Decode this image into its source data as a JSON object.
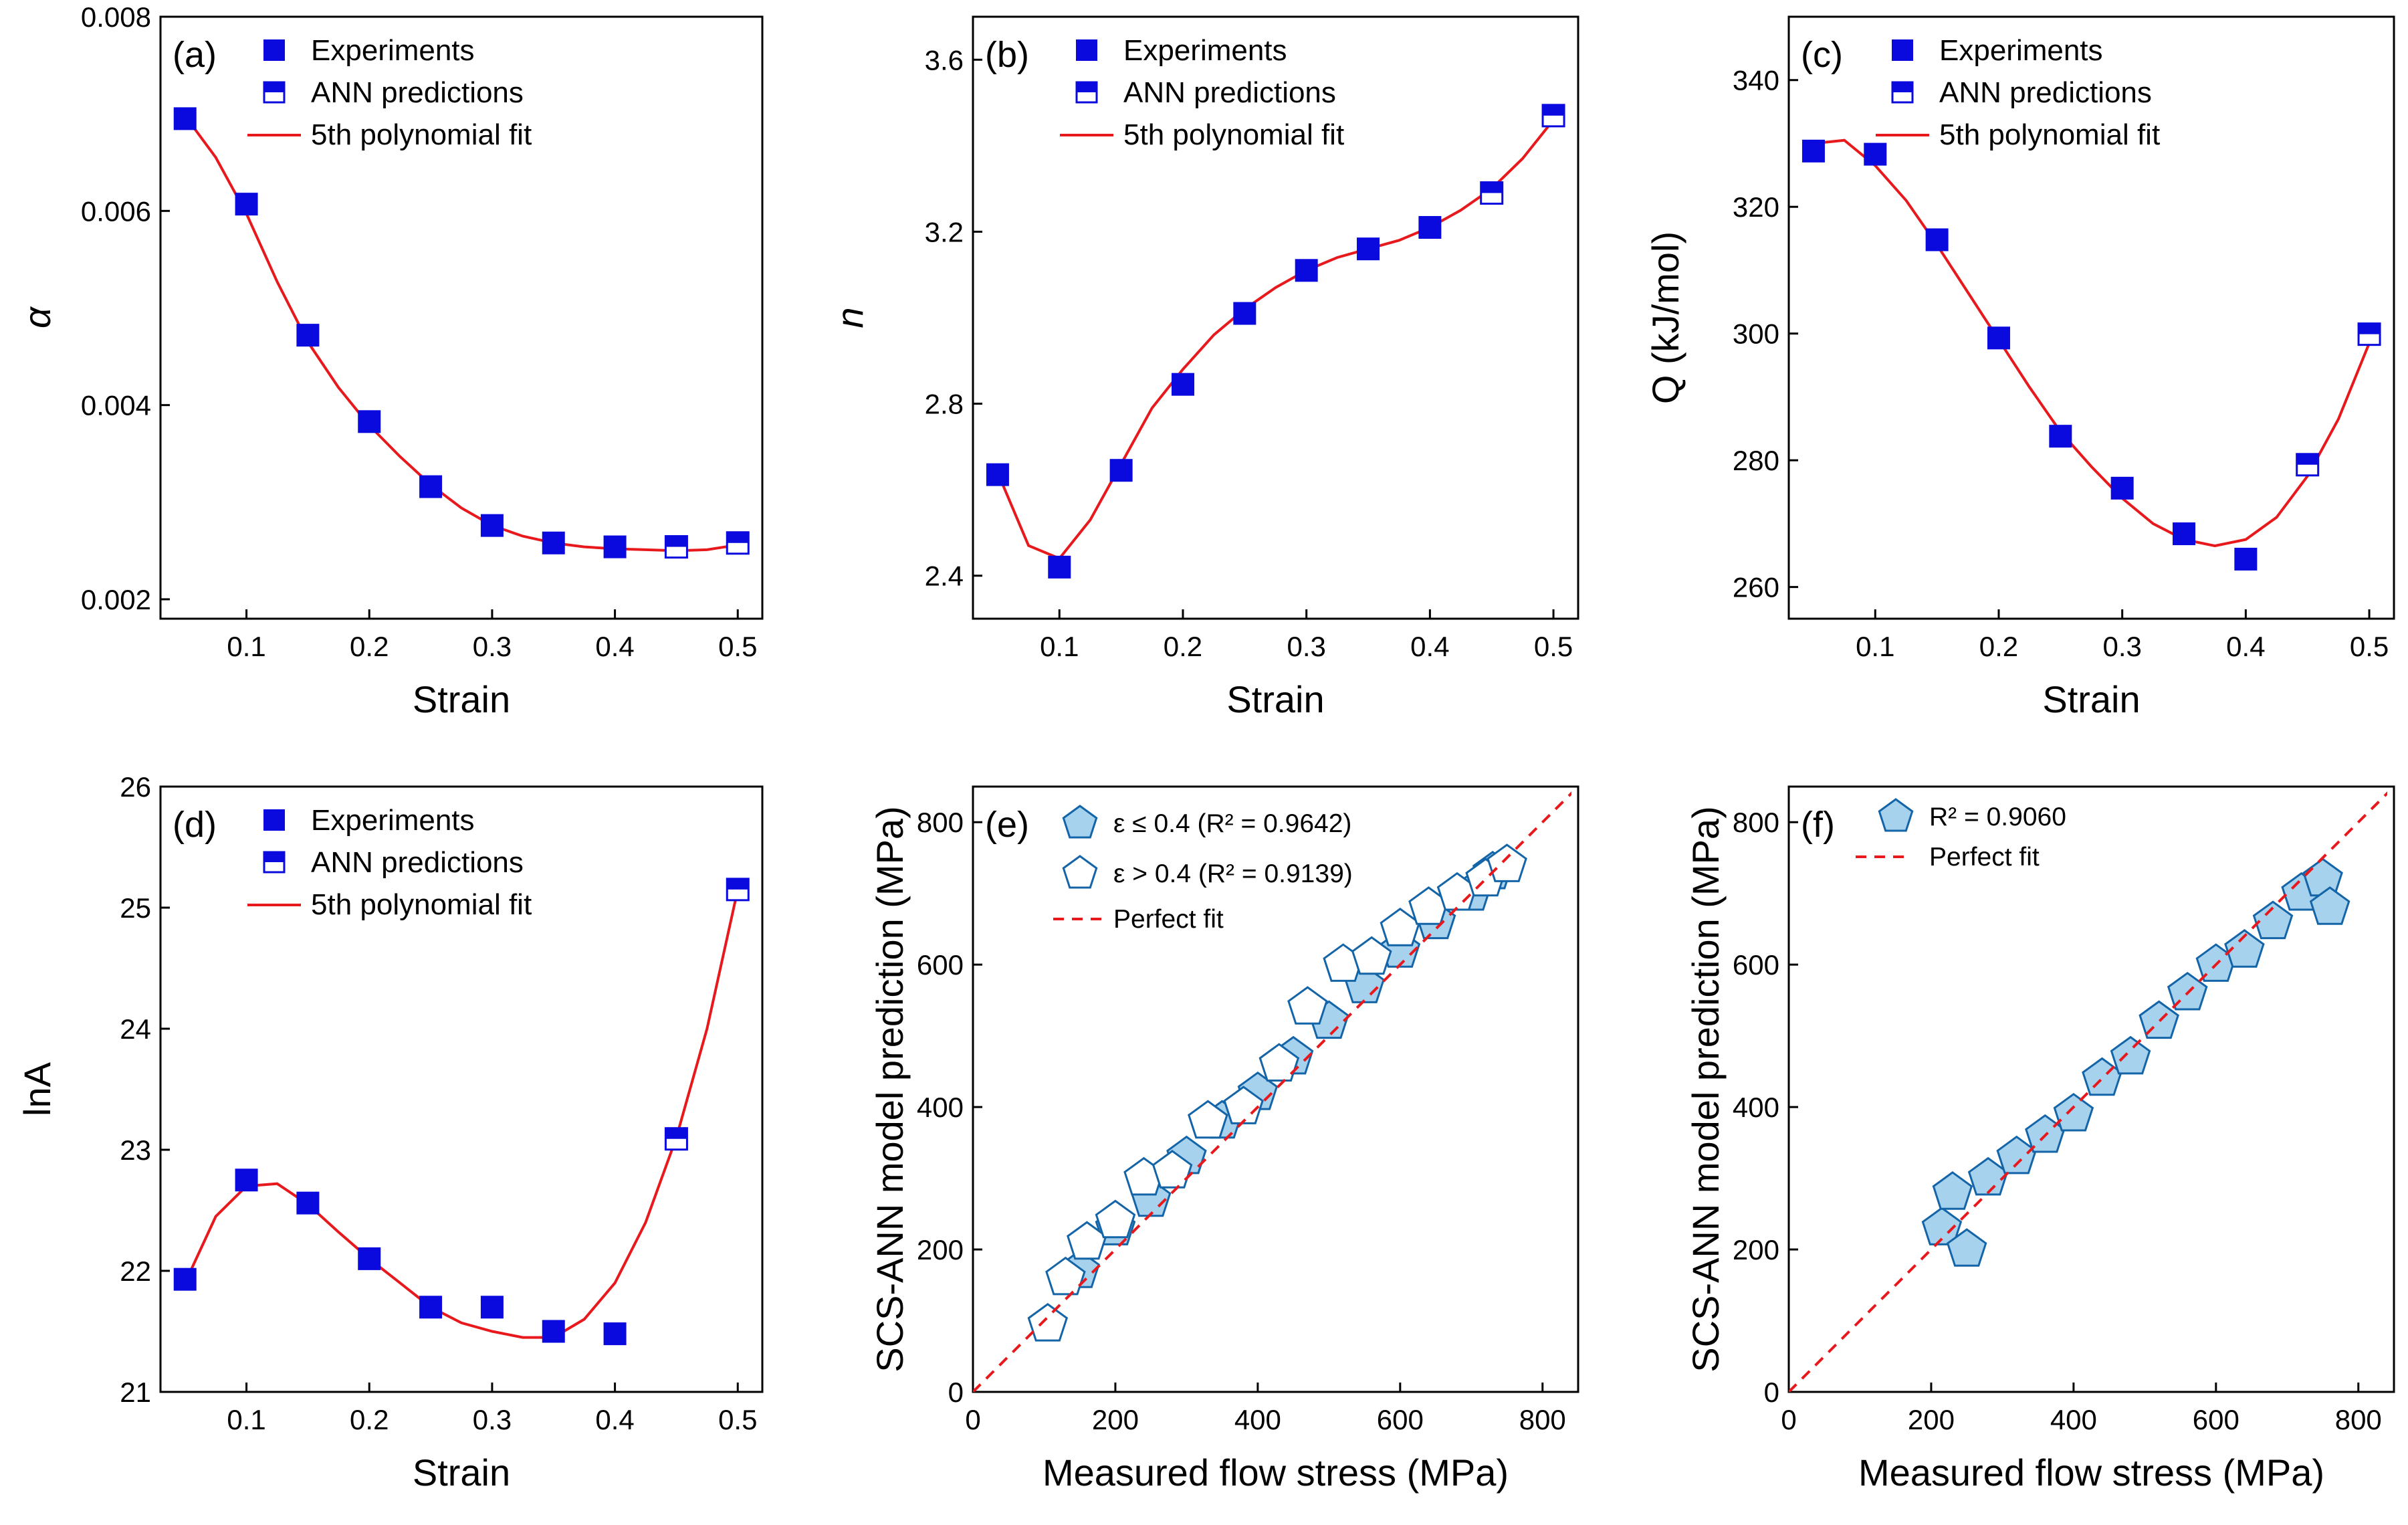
{
  "chart_data": [
    {
      "panel": "(a)",
      "type": "scatter",
      "xlabel": "Strain",
      "ylabel": "α",
      "xlim": [
        0.03,
        0.52
      ],
      "ylim": [
        0.0018,
        0.008
      ],
      "xticks": [
        0.1,
        0.2,
        0.3,
        0.4,
        0.5
      ],
      "xtick_labels": [
        "0.1",
        "0.2",
        "0.3",
        "0.4",
        "0.5"
      ],
      "yticks": [
        0.002,
        0.004,
        0.006,
        0.008
      ],
      "ytick_labels": [
        "0.002",
        "0.004",
        "0.006",
        "0.008"
      ],
      "legend": [
        "Experiments",
        "ANN predictions",
        "5th polynomial fit"
      ],
      "x": [
        0.05,
        0.1,
        0.15,
        0.2,
        0.25,
        0.3,
        0.35,
        0.4,
        0.45,
        0.5
      ],
      "series": [
        {
          "name": "Experiments",
          "x": [
            0.05,
            0.1,
            0.15,
            0.2,
            0.25,
            0.3,
            0.35,
            0.4
          ],
          "values": [
            0.00695,
            0.00607,
            0.00472,
            0.00383,
            0.00316,
            0.00276,
            0.00258,
            0.00254
          ]
        },
        {
          "name": "ANN predictions",
          "x": [
            0.45,
            0.5
          ],
          "values": [
            0.00254,
            0.00258
          ]
        },
        {
          "name": "5th polynomial fit",
          "x": [
            0.05,
            0.075,
            0.1,
            0.125,
            0.15,
            0.175,
            0.2,
            0.225,
            0.25,
            0.275,
            0.3,
            0.325,
            0.35,
            0.375,
            0.4,
            0.425,
            0.45,
            0.475,
            0.5
          ],
          "values": [
            0.00698,
            0.00655,
            0.00597,
            0.00527,
            0.00465,
            0.00418,
            0.00379,
            0.00347,
            0.00318,
            0.00294,
            0.00276,
            0.00265,
            0.00258,
            0.00254,
            0.00252,
            0.00251,
            0.0025,
            0.00251,
            0.00256
          ]
        }
      ]
    },
    {
      "panel": "(b)",
      "type": "scatter",
      "xlabel": "Strain",
      "ylabel": "n",
      "xlim": [
        0.03,
        0.52
      ],
      "ylim": [
        2.3,
        3.7
      ],
      "xticks": [
        0.1,
        0.2,
        0.3,
        0.4,
        0.5
      ],
      "xtick_labels": [
        "0.1",
        "0.2",
        "0.3",
        "0.4",
        "0.5"
      ],
      "yticks": [
        2.4,
        2.8,
        3.2,
        3.6
      ],
      "ytick_labels": [
        "2.4",
        "2.8",
        "3.2",
        "3.6"
      ],
      "legend": [
        "Experiments",
        "ANN predictions",
        "5th polynomial fit"
      ],
      "series": [
        {
          "name": "Experiments",
          "x": [
            0.05,
            0.1,
            0.15,
            0.2,
            0.25,
            0.3,
            0.35,
            0.4
          ],
          "values": [
            2.635,
            2.42,
            2.645,
            2.845,
            3.01,
            3.11,
            3.16,
            3.21
          ]
        },
        {
          "name": "ANN predictions",
          "x": [
            0.45,
            0.5
          ],
          "values": [
            3.29,
            3.47
          ]
        },
        {
          "name": "5th polynomial fit",
          "x": [
            0.05,
            0.075,
            0.1,
            0.125,
            0.15,
            0.175,
            0.2,
            0.225,
            0.25,
            0.275,
            0.3,
            0.325,
            0.35,
            0.375,
            0.4,
            0.425,
            0.45,
            0.475,
            0.5
          ],
          "values": [
            2.64,
            2.47,
            2.44,
            2.53,
            2.66,
            2.79,
            2.88,
            2.96,
            3.02,
            3.07,
            3.11,
            3.14,
            3.16,
            3.18,
            3.21,
            3.25,
            3.3,
            3.37,
            3.46
          ]
        }
      ]
    },
    {
      "panel": "(c)",
      "type": "scatter",
      "xlabel": "Strain",
      "ylabel": "Q (kJ/mol)",
      "xlim": [
        0.03,
        0.52
      ],
      "ylim": [
        255,
        350
      ],
      "xticks": [
        0.1,
        0.2,
        0.3,
        0.4,
        0.5
      ],
      "xtick_labels": [
        "0.1",
        "0.2",
        "0.3",
        "0.4",
        "0.5"
      ],
      "yticks": [
        260,
        280,
        300,
        320,
        340
      ],
      "ytick_labels": [
        "260",
        "280",
        "300",
        "320",
        "340"
      ],
      "legend": [
        "Experiments",
        "ANN predictions",
        "5th polynomial fit"
      ],
      "series": [
        {
          "name": "Experiments",
          "x": [
            0.05,
            0.1,
            0.15,
            0.2,
            0.25,
            0.3,
            0.35,
            0.4
          ],
          "values": [
            328.8,
            328.3,
            314.8,
            299.3,
            283.8,
            275.6,
            268.4,
            264.4
          ]
        },
        {
          "name": "ANN predictions",
          "x": [
            0.45,
            0.5
          ],
          "values": [
            279.3,
            299.9
          ]
        },
        {
          "name": "5th polynomial fit",
          "x": [
            0.05,
            0.075,
            0.1,
            0.125,
            0.15,
            0.175,
            0.2,
            0.225,
            0.25,
            0.275,
            0.3,
            0.325,
            0.35,
            0.375,
            0.4,
            0.425,
            0.45,
            0.475,
            0.5
          ],
          "values": [
            330.0,
            330.5,
            326.5,
            321.0,
            314.0,
            306.5,
            299.0,
            291.5,
            284.5,
            279.0,
            274.0,
            270.0,
            267.5,
            266.5,
            267.5,
            271.0,
            277.5,
            286.5,
            298.5
          ]
        }
      ]
    },
    {
      "panel": "(d)",
      "type": "scatter",
      "xlabel": "Strain",
      "ylabel": "lnA",
      "xlim": [
        0.03,
        0.52
      ],
      "ylim": [
        21,
        26
      ],
      "xticks": [
        0.1,
        0.2,
        0.3,
        0.4,
        0.5
      ],
      "xtick_labels": [
        "0.1",
        "0.2",
        "0.3",
        "0.4",
        "0.5"
      ],
      "yticks": [
        21,
        22,
        23,
        24,
        25,
        26
      ],
      "ytick_labels": [
        "21",
        "22",
        "23",
        "24",
        "25",
        "26"
      ],
      "legend": [
        "Experiments",
        "ANN predictions",
        "5th polynomial fit"
      ],
      "series": [
        {
          "name": "Experiments",
          "x": [
            0.05,
            0.1,
            0.15,
            0.2,
            0.25,
            0.3,
            0.35,
            0.4
          ],
          "values": [
            21.93,
            22.75,
            22.56,
            22.1,
            21.7,
            21.7,
            21.5,
            21.48
          ]
        },
        {
          "name": "ANN predictions",
          "x": [
            0.45,
            0.5
          ],
          "values": [
            23.09,
            25.15
          ]
        },
        {
          "name": "5th polynomial fit",
          "x": [
            0.05,
            0.075,
            0.1,
            0.125,
            0.15,
            0.175,
            0.2,
            0.225,
            0.25,
            0.275,
            0.3,
            0.325,
            0.35,
            0.375,
            0.4,
            0.425,
            0.45,
            0.475,
            0.5
          ],
          "values": [
            21.9,
            22.45,
            22.7,
            22.72,
            22.55,
            22.32,
            22.1,
            21.9,
            21.7,
            21.57,
            21.5,
            21.45,
            21.45,
            21.6,
            21.9,
            22.4,
            23.1,
            24.0,
            25.15
          ]
        }
      ]
    },
    {
      "panel": "(e)",
      "type": "scatter",
      "xlabel": "Measured flow stress (MPa)",
      "ylabel": "SCS-ANN model prediction (MPa)",
      "xlim": [
        0,
        850
      ],
      "ylim": [
        0,
        850
      ],
      "xticks": [
        0,
        200,
        400,
        600,
        800
      ],
      "xtick_labels": [
        "0",
        "200",
        "400",
        "600",
        "800"
      ],
      "yticks": [
        0,
        200,
        400,
        600,
        800
      ],
      "ytick_labels": [
        "0",
        "200",
        "400",
        "600",
        "800"
      ],
      "legend": [
        "ε ≤ 0.4 (R² = 0.9642)",
        "ε > 0.4 (R² = 0.9139)",
        "Perfect fit"
      ],
      "series": [
        {
          "name": "ε ≤ 0.4",
          "r2": 0.9642,
          "x": [
            150,
            200,
            250,
            300,
            350,
            400,
            450,
            500,
            550,
            600,
            650,
            700,
            730
          ],
          "values": [
            170,
            230,
            270,
            330,
            380,
            420,
            470,
            520,
            570,
            620,
            660,
            700,
            730
          ]
        },
        {
          "name": "ε > 0.4",
          "r2": 0.9139,
          "x": [
            105,
            130,
            160,
            200,
            240,
            280,
            330,
            380,
            430,
            470,
            520,
            560,
            600,
            640,
            680,
            720,
            750
          ],
          "values": [
            95,
            160,
            210,
            240,
            300,
            310,
            380,
            400,
            460,
            540,
            600,
            610,
            650,
            680,
            700,
            720,
            740
          ]
        },
        {
          "name": "Perfect fit",
          "x": [
            0,
            850
          ],
          "values": [
            0,
            850
          ]
        }
      ]
    },
    {
      "panel": "(f)",
      "type": "scatter",
      "xlabel": "Measured flow stress (MPa)",
      "ylabel": "SCS-ANN model prediction (MPa)",
      "xlim": [
        0,
        850
      ],
      "ylim": [
        0,
        850
      ],
      "xticks": [
        0,
        200,
        400,
        600,
        800
      ],
      "xtick_labels": [
        "0",
        "200",
        "400",
        "600",
        "800"
      ],
      "yticks": [
        0,
        200,
        400,
        600,
        800
      ],
      "ytick_labels": [
        "0",
        "200",
        "400",
        "600",
        "800"
      ],
      "legend": [
        "R² = 0.9060",
        "Perfect fit"
      ],
      "series": [
        {
          "name": "SCS-ANN",
          "r2": 0.906,
          "x": [
            215,
            230,
            250,
            280,
            320,
            360,
            400,
            440,
            480,
            520,
            560,
            600,
            640,
            680,
            720,
            750,
            760
          ],
          "values": [
            230,
            280,
            200,
            300,
            330,
            360,
            390,
            440,
            470,
            520,
            560,
            600,
            620,
            660,
            700,
            720,
            680
          ]
        },
        {
          "name": "Perfect fit",
          "x": [
            0,
            850
          ],
          "values": [
            0,
            850
          ]
        }
      ]
    }
  ]
}
